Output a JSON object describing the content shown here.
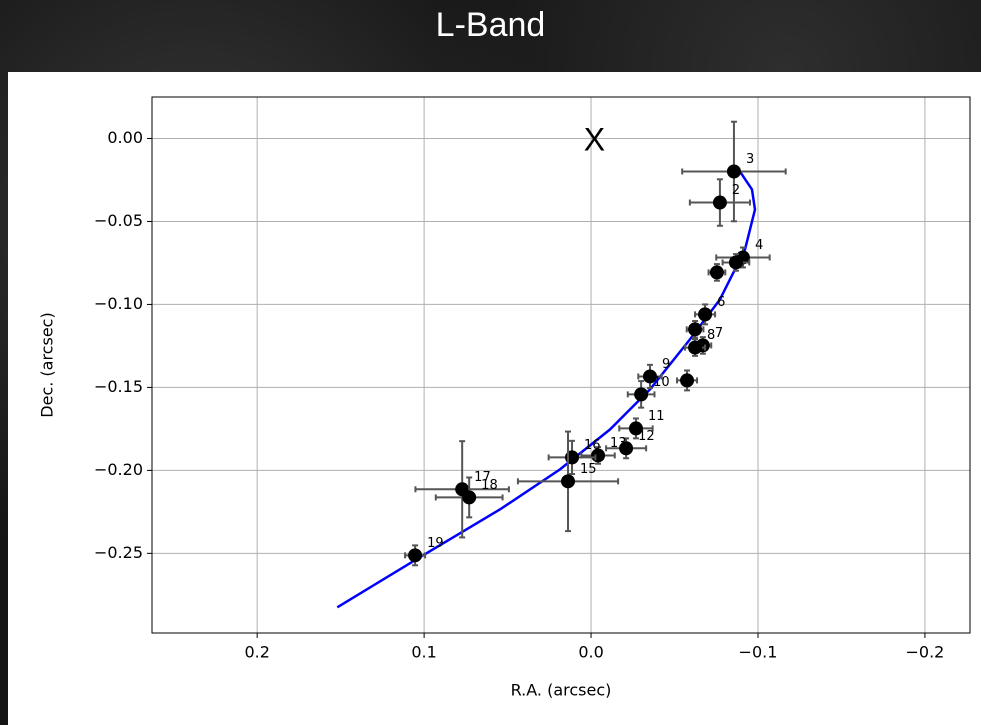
{
  "chart_data": {
    "type": "scatter",
    "title": "L-Band",
    "xlabel": "R.A. (arcsec)",
    "ylabel": "Dec. (arcsec)",
    "xlim": [
      0.263,
      -0.227
    ],
    "ylim": [
      -0.298,
      0.025
    ],
    "xticks": [
      0.2,
      0.1,
      {
        "value": 0,
        "label": "0.0"
      },
      {
        "value": -0.1,
        "label": "−0.1"
      },
      {
        "value": -0.2,
        "label": "−0.2"
      }
    ],
    "yticks": [
      {
        "value": 0,
        "label": "0.00"
      },
      {
        "value": -0.05,
        "label": "−0.05"
      },
      {
        "value": -0.1,
        "label": "−0.10"
      },
      {
        "value": -0.15,
        "label": "−0.15"
      },
      {
        "value": -0.2,
        "label": "−0.20"
      },
      {
        "value": -0.25,
        "label": "−0.25"
      }
    ],
    "grid": true,
    "points": {
      "color": "#000000",
      "errcolor": "#555555",
      "x": [
        -0.0856,
        -0.0772,
        -0.091,
        -0.0868,
        -0.0754,
        -0.0683,
        -0.0623,
        -0.067,
        -0.0623,
        -0.0575,
        -0.0353,
        -0.03,
        -0.0269,
        -0.021,
        -0.0042,
        0.0114,
        0.0138,
        0.0772,
        0.073,
        0.1054
      ],
      "y": [
        -0.0199,
        -0.0386,
        -0.0717,
        -0.0747,
        -0.0807,
        -0.106,
        -0.115,
        -0.1247,
        -0.126,
        -0.1458,
        -0.1434,
        -0.1542,
        -0.1747,
        -0.1867,
        -0.191,
        -0.1922,
        -0.2066,
        -0.2114,
        -0.2163,
        -0.2512
      ],
      "xerr": [
        0.031,
        0.018,
        0.016,
        0.008,
        0.005,
        0.006,
        0.005,
        0.005,
        0.006,
        0.006,
        0.007,
        0.008,
        0.01,
        0.012,
        0.01,
        0.014,
        0.03,
        0.028,
        0.02,
        0.006
      ],
      "yerr": [
        0.03,
        0.014,
        0.006,
        0.005,
        0.005,
        0.006,
        0.005,
        0.005,
        0.005,
        0.006,
        0.007,
        0.008,
        0.006,
        0.006,
        0.005,
        0.01,
        0.03,
        0.029,
        0.012,
        0.006
      ],
      "labels": [
        "3",
        "2",
        "4",
        null,
        null,
        "6",
        null,
        "7",
        "8",
        null,
        "9",
        "10",
        "11",
        "12",
        "13",
        "16",
        "15",
        "17",
        "18",
        "19"
      ]
    },
    "fit": {
      "color": "#0000ff",
      "x": [
        0.152,
        0.102,
        0.0545,
        0.0186,
        -0.0114,
        -0.0353,
        -0.0593,
        -0.0772,
        -0.0922,
        -0.0982,
        -0.0964,
        -0.0892
      ],
      "y": [
        -0.2825,
        -0.252,
        -0.2235,
        -0.1994,
        -0.1753,
        -0.1512,
        -0.121,
        -0.097,
        -0.0669,
        -0.0428,
        -0.0307,
        -0.0199
      ]
    },
    "annotations": [
      {
        "text": "X",
        "x": -0.002,
        "y": -0.002
      }
    ]
  }
}
